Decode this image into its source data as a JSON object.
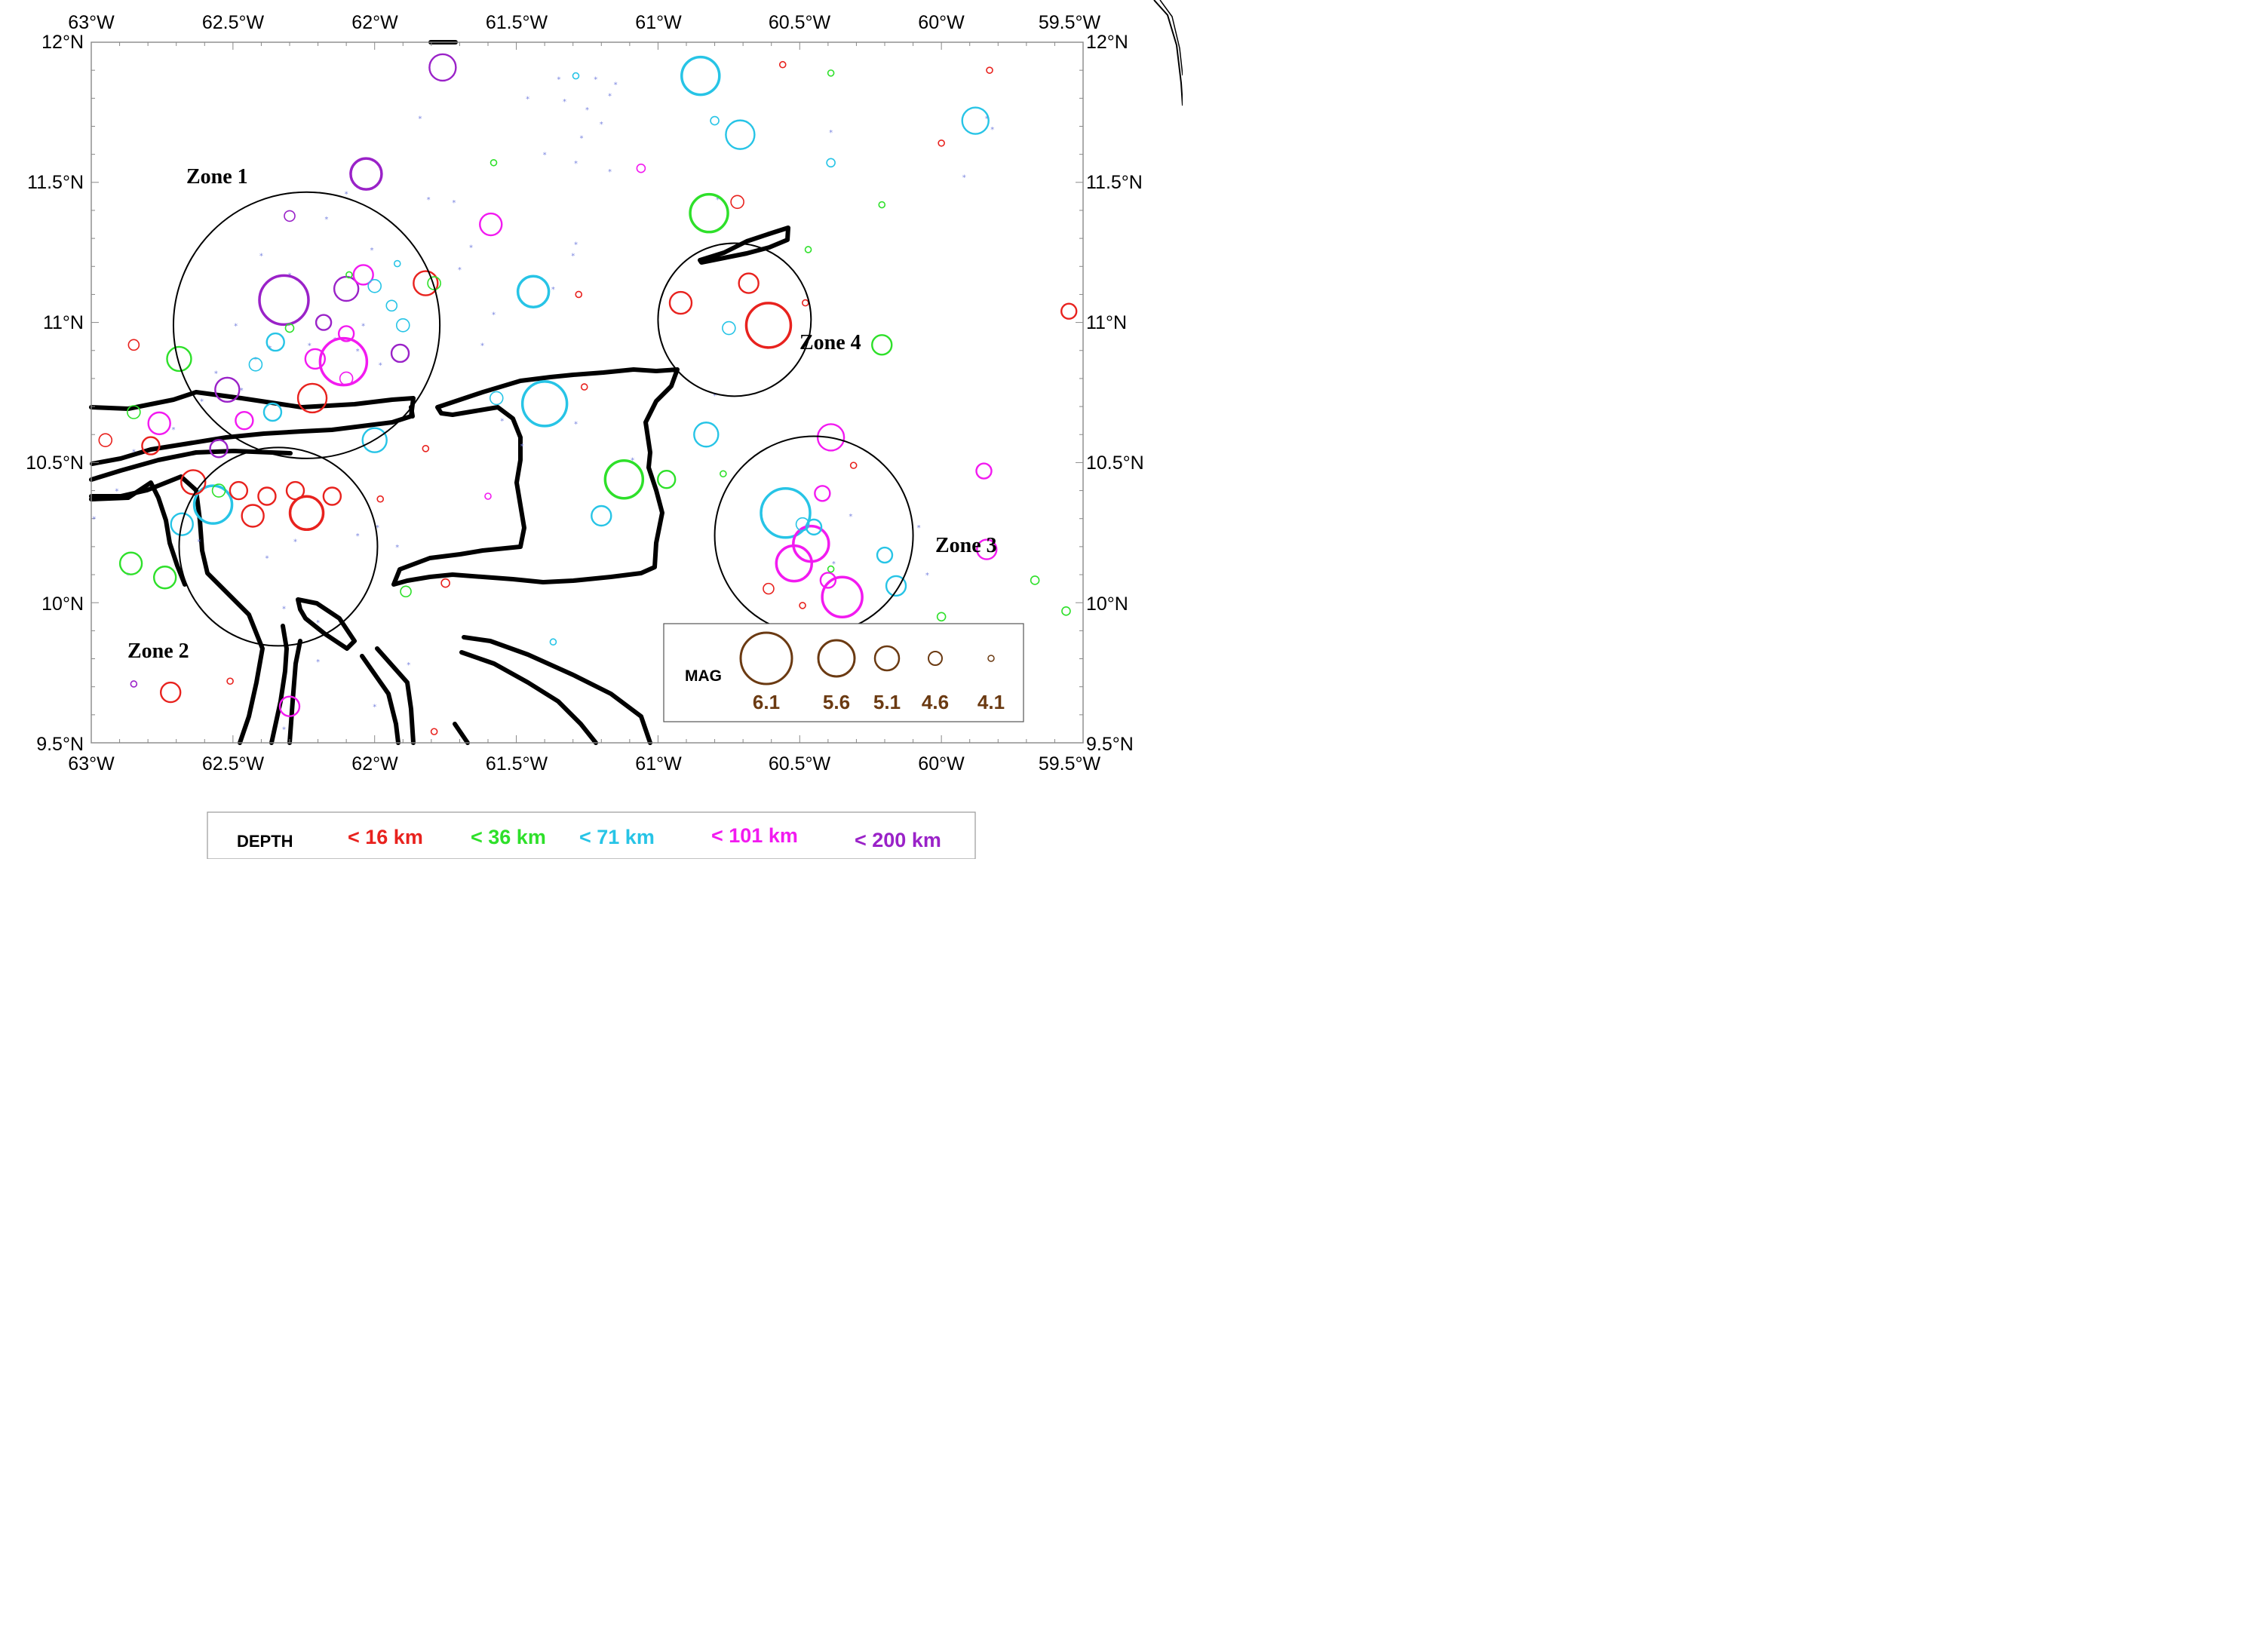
{
  "axes": {
    "lon_labels": [
      "63°W",
      "62.5°W",
      "62°W",
      "61.5°W",
      "61°W",
      "60.5°W",
      "60°W",
      "59.5°W"
    ],
    "lat_labels": [
      "12°N",
      "11.5°N",
      "11°N",
      "10.5°N",
      "10°N",
      "9.5°N"
    ]
  },
  "zones": [
    {
      "label": "Zone 1"
    },
    {
      "label": "Zone 2"
    },
    {
      "label": "Zone 3"
    },
    {
      "label": "Zone 4"
    }
  ],
  "mag_legend": {
    "title": "MAG",
    "items": [
      {
        "label": "6.1",
        "value": 6.1
      },
      {
        "label": "5.6",
        "value": 5.6
      },
      {
        "label": "5.1",
        "value": 5.1
      },
      {
        "label": "4.6",
        "value": 4.6
      },
      {
        "label": "4.1",
        "value": 4.1
      }
    ]
  },
  "depth_legend": {
    "title": "DEPTH",
    "items": [
      {
        "label": "< 16 km",
        "color": "#e8221e"
      },
      {
        "label": "< 36 km",
        "color": "#2ee02a"
      },
      {
        "label": "< 71 km",
        "color": "#27c4e6"
      },
      {
        "label": "< 101 km",
        "color": "#f21af0"
      },
      {
        "label": "< 200 km",
        "color": "#9a22c8"
      }
    ]
  },
  "colors": {
    "coast": "#000000",
    "legend_brown": "#6b3a12",
    "star_blue": "#7b86e0"
  },
  "chart_data": {
    "type": "scatter",
    "xlim": [
      -63.0,
      -59.5
    ],
    "ylim": [
      9.5,
      12.0
    ],
    "x_ticks": [
      -63.0,
      -62.5,
      -62.0,
      -61.5,
      -61.0,
      -60.5,
      -60.0,
      -59.5
    ],
    "y_ticks": [
      9.5,
      10.0,
      10.5,
      11.0,
      11.5,
      12.0
    ],
    "zones": [
      {
        "label": "Zone 1",
        "lon": -62.24,
        "lat": 10.99,
        "radius_deg": 0.47
      },
      {
        "label": "Zone 2",
        "lon": -62.34,
        "lat": 10.2,
        "radius_deg": 0.35
      },
      {
        "label": "Zone 3",
        "lon": -60.45,
        "lat": 10.24,
        "radius_deg": 0.35
      },
      {
        "label": "Zone 4",
        "lon": -60.73,
        "lat": 11.01,
        "radius_deg": 0.27
      }
    ],
    "events": [
      {
        "lon": -62.32,
        "lat": 11.08,
        "mag": 6.0,
        "depth": "<200"
      },
      {
        "lon": -62.11,
        "lat": 10.86,
        "mag": 5.9,
        "depth": "<101"
      },
      {
        "lon": -61.4,
        "lat": 10.71,
        "mag": 5.8,
        "depth": "<71"
      },
      {
        "lon": -60.55,
        "lat": 10.32,
        "mag": 6.0,
        "depth": "<71"
      },
      {
        "lon": -60.61,
        "lat": 10.99,
        "mag": 5.8,
        "depth": "<16"
      },
      {
        "lon": -60.85,
        "lat": 11.88,
        "mag": 5.5,
        "depth": "<71"
      },
      {
        "lon": -60.82,
        "lat": 11.39,
        "mag": 5.5,
        "depth": "<36"
      },
      {
        "lon": -61.12,
        "lat": 10.44,
        "mag": 5.5,
        "depth": "<36"
      },
      {
        "lon": -60.35,
        "lat": 10.02,
        "mag": 5.6,
        "depth": "<101"
      },
      {
        "lon": -60.46,
        "lat": 10.21,
        "mag": 5.4,
        "depth": "<101"
      },
      {
        "lon": -60.52,
        "lat": 10.14,
        "mag": 5.4,
        "depth": "<101"
      },
      {
        "lon": -62.57,
        "lat": 10.35,
        "mag": 5.5,
        "depth": "<71"
      },
      {
        "lon": -62.03,
        "lat": 11.53,
        "mag": 5.2,
        "depth": "<200"
      },
      {
        "lon": -61.44,
        "lat": 11.11,
        "mag": 5.2,
        "depth": "<71"
      },
      {
        "lon": -62.24,
        "lat": 10.32,
        "mag": 5.3,
        "depth": "<16"
      },
      {
        "lon": -62.22,
        "lat": 10.73,
        "mag": 5.1,
        "depth": "<16"
      },
      {
        "lon": -60.71,
        "lat": 11.67,
        "mag": 5.1,
        "depth": "<71"
      },
      {
        "lon": -59.88,
        "lat": 11.72,
        "mag": 5.0,
        "depth": "<71"
      },
      {
        "lon": -60.39,
        "lat": 10.59,
        "mag": 5.0,
        "depth": "<101"
      },
      {
        "lon": -61.76,
        "lat": 11.91,
        "mag": 5.0,
        "depth": "<200"
      },
      {
        "lon": -62.1,
        "lat": 11.12,
        "mag": 4.9,
        "depth": "<200"
      },
      {
        "lon": -62.69,
        "lat": 10.87,
        "mag": 4.9,
        "depth": "<36"
      },
      {
        "lon": -62.64,
        "lat": 10.43,
        "mag": 4.9,
        "depth": "<16"
      },
      {
        "lon": -61.82,
        "lat": 11.14,
        "mag": 4.9,
        "depth": "<16"
      },
      {
        "lon": -62.52,
        "lat": 10.76,
        "mag": 4.9,
        "depth": "<200"
      },
      {
        "lon": -62.0,
        "lat": 10.58,
        "mag": 4.9,
        "depth": "<71"
      },
      {
        "lon": -60.83,
        "lat": 10.6,
        "mag": 4.9,
        "depth": "<71"
      },
      {
        "lon": -62.43,
        "lat": 10.31,
        "mag": 4.8,
        "depth": "<16"
      },
      {
        "lon": -62.86,
        "lat": 10.14,
        "mag": 4.8,
        "depth": "<36"
      },
      {
        "lon": -62.74,
        "lat": 10.09,
        "mag": 4.8,
        "depth": "<36"
      },
      {
        "lon": -61.59,
        "lat": 11.35,
        "mag": 4.8,
        "depth": "<101"
      },
      {
        "lon": -62.76,
        "lat": 10.64,
        "mag": 4.8,
        "depth": "<101"
      },
      {
        "lon": -60.92,
        "lat": 11.07,
        "mag": 4.8,
        "depth": "<16"
      },
      {
        "lon": -62.68,
        "lat": 10.28,
        "mag": 4.8,
        "depth": "<71"
      },
      {
        "lon": -60.16,
        "lat": 10.06,
        "mag": 4.7,
        "depth": "<71"
      },
      {
        "lon": -61.2,
        "lat": 10.31,
        "mag": 4.7,
        "depth": "<71"
      },
      {
        "lon": -60.68,
        "lat": 11.14,
        "mag": 4.7,
        "depth": "<16"
      },
      {
        "lon": -59.84,
        "lat": 10.19,
        "mag": 4.7,
        "depth": "<101"
      },
      {
        "lon": -60.21,
        "lat": 10.92,
        "mag": 4.7,
        "depth": "<36"
      },
      {
        "lon": -62.04,
        "lat": 11.17,
        "mag": 4.7,
        "depth": "<101"
      },
      {
        "lon": -62.21,
        "lat": 10.87,
        "mag": 4.7,
        "depth": "<101"
      },
      {
        "lon": -62.72,
        "lat": 9.68,
        "mag": 4.7,
        "depth": "<16"
      },
      {
        "lon": -62.3,
        "lat": 9.63,
        "mag": 4.7,
        "depth": "<101"
      },
      {
        "lon": -62.35,
        "lat": 10.93,
        "mag": 4.6,
        "depth": "<71"
      },
      {
        "lon": -61.91,
        "lat": 10.89,
        "mag": 4.6,
        "depth": "<200"
      },
      {
        "lon": -62.48,
        "lat": 10.4,
        "mag": 4.6,
        "depth": "<16"
      },
      {
        "lon": -62.38,
        "lat": 10.38,
        "mag": 4.6,
        "depth": "<16"
      },
      {
        "lon": -62.28,
        "lat": 10.4,
        "mag": 4.6,
        "depth": "<16"
      },
      {
        "lon": -62.15,
        "lat": 10.38,
        "mag": 4.6,
        "depth": "<16"
      },
      {
        "lon": -62.55,
        "lat": 10.55,
        "mag": 4.6,
        "depth": "<200"
      },
      {
        "lon": -62.46,
        "lat": 10.65,
        "mag": 4.6,
        "depth": "<101"
      },
      {
        "lon": -62.36,
        "lat": 10.68,
        "mag": 4.6,
        "depth": "<71"
      },
      {
        "lon": -62.18,
        "lat": 11.0,
        "mag": 4.5,
        "depth": "<200"
      },
      {
        "lon": -62.1,
        "lat": 10.96,
        "mag": 4.5,
        "depth": "<101"
      },
      {
        "lon": -60.4,
        "lat": 10.08,
        "mag": 4.5,
        "depth": "<101"
      },
      {
        "lon": -60.42,
        "lat": 10.39,
        "mag": 4.5,
        "depth": "<101"
      },
      {
        "lon": -59.85,
        "lat": 10.47,
        "mag": 4.5,
        "depth": "<101"
      },
      {
        "lon": -60.2,
        "lat": 10.17,
        "mag": 4.5,
        "depth": "<71"
      },
      {
        "lon": -60.45,
        "lat": 10.27,
        "mag": 4.5,
        "depth": "<71"
      },
      {
        "lon": -60.61,
        "lat": 10.05,
        "mag": 4.3,
        "depth": "<16"
      },
      {
        "lon": -59.55,
        "lat": 11.04,
        "mag": 4.5,
        "depth": "<16"
      },
      {
        "lon": -60.72,
        "lat": 11.43,
        "mag": 4.4,
        "depth": "<16"
      },
      {
        "lon": -62.42,
        "lat": 10.85,
        "mag": 4.4,
        "depth": "<71"
      },
      {
        "lon": -62.0,
        "lat": 11.13,
        "mag": 4.4,
        "depth": "<71"
      },
      {
        "lon": -61.9,
        "lat": 10.99,
        "mag": 4.4,
        "depth": "<71"
      },
      {
        "lon": -62.3,
        "lat": 11.38,
        "mag": 4.3,
        "depth": "<200"
      },
      {
        "lon": -62.79,
        "lat": 10.56,
        "mag": 4.6,
        "depth": "<16"
      },
      {
        "lon": -62.85,
        "lat": 10.68,
        "mag": 4.4,
        "depth": "<36"
      },
      {
        "lon": -62.95,
        "lat": 10.58,
        "mag": 4.4,
        "depth": "<16"
      },
      {
        "lon": -61.89,
        "lat": 10.04,
        "mag": 4.3,
        "depth": "<36"
      },
      {
        "lon": -62.85,
        "lat": 10.92,
        "mag": 4.3,
        "depth": "<16"
      },
      {
        "lon": -61.79,
        "lat": 11.14,
        "mag": 4.4,
        "depth": "<36"
      },
      {
        "lon": -62.55,
        "lat": 10.4,
        "mag": 4.4,
        "depth": "<36"
      },
      {
        "lon": -62.3,
        "lat": 10.98,
        "mag": 4.2,
        "depth": "<36"
      },
      {
        "lon": -60.97,
        "lat": 10.44,
        "mag": 4.6,
        "depth": "<36"
      },
      {
        "lon": -61.57,
        "lat": 10.73,
        "mag": 4.4,
        "depth": "<71"
      },
      {
        "lon": -62.1,
        "lat": 10.8,
        "mag": 4.4,
        "depth": "<101"
      },
      {
        "lon": -60.75,
        "lat": 10.98,
        "mag": 4.4,
        "depth": "<71"
      },
      {
        "lon": -60.49,
        "lat": 10.28,
        "mag": 4.4,
        "depth": "<71"
      },
      {
        "lon": -60.0,
        "lat": 9.95,
        "mag": 4.2,
        "depth": "<36"
      },
      {
        "lon": -59.67,
        "lat": 10.08,
        "mag": 4.2,
        "depth": "<36"
      },
      {
        "lon": -59.56,
        "lat": 9.97,
        "mag": 4.2,
        "depth": "<36"
      },
      {
        "lon": -60.8,
        "lat": 11.72,
        "mag": 4.2,
        "depth": "<71"
      },
      {
        "lon": -60.39,
        "lat": 11.57,
        "mag": 4.2,
        "depth": "<71"
      },
      {
        "lon": -60.56,
        "lat": 11.92,
        "mag": 4.1,
        "depth": "<16"
      },
      {
        "lon": -61.06,
        "lat": 11.55,
        "mag": 4.2,
        "depth": "<101"
      },
      {
        "lon": -61.58,
        "lat": 11.57,
        "mag": 4.1,
        "depth": "<36"
      },
      {
        "lon": -60.0,
        "lat": 11.64,
        "mag": 4.1,
        "depth": "<16"
      },
      {
        "lon": -61.79,
        "lat": 9.54,
        "mag": 4.1,
        "depth": "<16"
      },
      {
        "lon": -62.85,
        "lat": 9.71,
        "mag": 4.1,
        "depth": "<200"
      },
      {
        "lon": -62.51,
        "lat": 9.72,
        "mag": 4.1,
        "depth": "<16"
      },
      {
        "lon": -61.29,
        "lat": 11.88,
        "mag": 4.1,
        "depth": "<71"
      },
      {
        "lon": -60.39,
        "lat": 11.89,
        "mag": 4.1,
        "depth": "<36"
      },
      {
        "lon": -59.83,
        "lat": 11.9,
        "mag": 4.1,
        "depth": "<16"
      },
      {
        "lon": -62.09,
        "lat": 11.17,
        "mag": 4.1,
        "depth": "<36"
      },
      {
        "lon": -61.92,
        "lat": 11.21,
        "mag": 4.1,
        "depth": "<71"
      },
      {
        "lon": -61.94,
        "lat": 11.06,
        "mag": 4.3,
        "depth": "<71"
      },
      {
        "lon": -60.21,
        "lat": 11.42,
        "mag": 4.1,
        "depth": "<36"
      },
      {
        "lon": -60.47,
        "lat": 11.26,
        "mag": 4.1,
        "depth": "<36"
      },
      {
        "lon": -61.28,
        "lat": 11.1,
        "mag": 4.1,
        "depth": "<16"
      },
      {
        "lon": -61.6,
        "lat": 10.38,
        "mag": 4.1,
        "depth": "<101"
      },
      {
        "lon": -61.26,
        "lat": 10.77,
        "mag": 4.1,
        "depth": "<16"
      },
      {
        "lon": -61.82,
        "lat": 10.55,
        "mag": 4.1,
        "depth": "<16"
      },
      {
        "lon": -61.98,
        "lat": 10.37,
        "mag": 4.1,
        "depth": "<16"
      },
      {
        "lon": -61.75,
        "lat": 10.07,
        "mag": 4.2,
        "depth": "<16"
      },
      {
        "lon": -61.37,
        "lat": 9.86,
        "mag": 4.1,
        "depth": "<71"
      },
      {
        "lon": -60.39,
        "lat": 10.12,
        "mag": 4.1,
        "depth": "<36"
      },
      {
        "lon": -60.31,
        "lat": 10.49,
        "mag": 4.1,
        "depth": "<16"
      },
      {
        "lon": -60.77,
        "lat": 10.46,
        "mag": 4.1,
        "depth": "<36"
      },
      {
        "lon": -60.49,
        "lat": 9.99,
        "mag": 4.1,
        "depth": "<16"
      },
      {
        "lon": -60.48,
        "lat": 11.07,
        "mag": 4.1,
        "depth": "<16"
      }
    ],
    "star_markers": [
      [
        -61.35,
        11.87
      ],
      [
        -61.22,
        11.87
      ],
      [
        -61.17,
        11.81
      ],
      [
        -61.33,
        11.79
      ],
      [
        -61.25,
        11.76
      ],
      [
        -61.2,
        11.71
      ],
      [
        -61.4,
        11.6
      ],
      [
        -61.27,
        11.66
      ],
      [
        -61.29,
        11.57
      ],
      [
        -61.15,
        11.85
      ],
      [
        -60.39,
        11.68
      ],
      [
        -59.84,
        11.73
      ],
      [
        -59.82,
        11.69
      ],
      [
        -59.92,
        11.52
      ],
      [
        -61.46,
        11.8
      ],
      [
        -61.29,
        11.28
      ],
      [
        -61.3,
        11.24
      ],
      [
        -61.37,
        11.12
      ],
      [
        -61.17,
        11.54
      ],
      [
        -60.79,
        11.44
      ],
      [
        -61.84,
        11.73
      ],
      [
        -61.72,
        11.43
      ],
      [
        -61.81,
        11.44
      ],
      [
        -61.66,
        11.27
      ],
      [
        -61.7,
        11.19
      ],
      [
        -61.58,
        11.03
      ],
      [
        -61.62,
        10.92
      ],
      [
        -62.1,
        11.46
      ],
      [
        -62.17,
        11.37
      ],
      [
        -62.01,
        11.26
      ],
      [
        -62.4,
        11.24
      ],
      [
        -62.3,
        11.17
      ],
      [
        -62.14,
        10.94
      ],
      [
        -62.04,
        10.99
      ],
      [
        -62.49,
        10.99
      ],
      [
        -62.61,
        10.72
      ],
      [
        -62.56,
        10.82
      ],
      [
        -62.42,
        10.87
      ],
      [
        -62.37,
        10.91
      ],
      [
        -62.23,
        10.92
      ],
      [
        -62.06,
        10.9
      ],
      [
        -61.98,
        10.85
      ],
      [
        -62.47,
        10.76
      ],
      [
        -62.71,
        10.62
      ],
      [
        -62.85,
        10.54
      ],
      [
        -62.91,
        10.4
      ],
      [
        -62.99,
        10.3
      ],
      [
        -62.62,
        10.22
      ],
      [
        -62.38,
        10.16
      ],
      [
        -62.28,
        10.22
      ],
      [
        -62.06,
        10.24
      ],
      [
        -61.92,
        10.2
      ],
      [
        -61.99,
        10.27
      ],
      [
        -62.32,
        9.98
      ],
      [
        -62.2,
        9.93
      ],
      [
        -61.88,
        9.78
      ],
      [
        -62.0,
        9.63
      ],
      [
        -62.2,
        9.79
      ],
      [
        -62.32,
        9.55
      ],
      [
        -62.87,
        10.1
      ],
      [
        -61.55,
        10.65
      ],
      [
        -61.48,
        10.56
      ],
      [
        -61.29,
        10.64
      ],
      [
        -61.09,
        10.51
      ],
      [
        -60.8,
        10.74
      ],
      [
        -60.38,
        10.14
      ],
      [
        -60.08,
        10.27
      ],
      [
        -60.05,
        10.1
      ],
      [
        -60.32,
        10.31
      ]
    ]
  }
}
